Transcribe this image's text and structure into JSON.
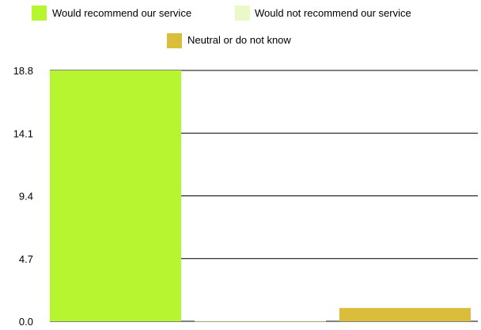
{
  "chart_data": {
    "type": "bar",
    "categories": [
      "Would recommend our service",
      "Would not recommend our service",
      "Neutral or do not know"
    ],
    "values": [
      18.8,
      0.05,
      1.0
    ],
    "colors": [
      "#b8f531",
      "#eaf9c7",
      "#dbbd3c"
    ],
    "legend": {
      "position": "top",
      "entries": [
        "Would recommend our service",
        "Would not recommend our service",
        "Neutral or do not know"
      ]
    },
    "yticks": [
      "0.0",
      "4.7",
      "9.4",
      "14.1",
      "18.8"
    ],
    "ylim": [
      0,
      18.8
    ],
    "grid": true
  }
}
